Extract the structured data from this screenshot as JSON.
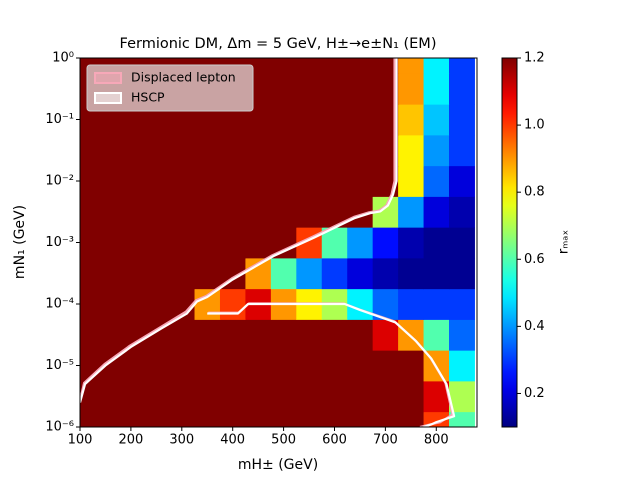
{
  "chart_data": {
    "type": "heatmap",
    "title": "Fermionic DM, Δm = 5 GeV, H±→e±N₁  (EM)",
    "x_label": "mH± (GeV)",
    "y_label": "mN₁ (GeV)",
    "colorbar_label": "rₘₐₓ",
    "colormap": "jet",
    "x": [
      100,
      150,
      200,
      250,
      300,
      350,
      400,
      450,
      500,
      550,
      600,
      650,
      700,
      750,
      800,
      850
    ],
    "y": [
      1e-06,
      3.16e-06,
      1e-05,
      3.16e-05,
      0.0001,
      0.000316,
      0.001,
      0.00316,
      0.01,
      0.0316,
      0.1,
      0.316,
      1
    ],
    "z": [
      [
        1.2,
        1.2,
        1.2,
        1.2,
        1.2,
        1.2,
        1.2,
        1.2,
        1.2,
        1.2,
        1.2,
        1.2,
        1.2,
        1.2,
        1.0,
        0.6
      ],
      [
        1.2,
        1.2,
        1.2,
        1.2,
        1.2,
        1.2,
        1.2,
        1.2,
        1.2,
        1.2,
        1.2,
        1.2,
        1.2,
        1.2,
        1.1,
        0.7
      ],
      [
        1.2,
        1.2,
        1.2,
        1.2,
        1.2,
        1.2,
        1.2,
        1.2,
        1.2,
        1.2,
        1.2,
        1.2,
        1.2,
        1.2,
        0.9,
        0.5
      ],
      [
        1.2,
        1.2,
        1.2,
        1.2,
        1.2,
        1.2,
        1.2,
        1.2,
        1.2,
        1.2,
        1.2,
        1.2,
        1.1,
        0.9,
        0.6,
        0.35
      ],
      [
        1.2,
        1.2,
        1.2,
        1.2,
        1.2,
        0.9,
        1.0,
        1.1,
        0.9,
        0.8,
        0.7,
        0.5,
        0.35,
        0.3,
        0.3,
        0.3
      ],
      [
        1.2,
        1.2,
        1.2,
        1.2,
        1.2,
        1.2,
        1.2,
        0.9,
        0.6,
        0.4,
        0.3,
        0.2,
        0.15,
        0.12,
        0.12,
        0.12
      ],
      [
        1.2,
        1.2,
        1.2,
        1.2,
        1.2,
        1.2,
        1.2,
        1.2,
        1.2,
        1.0,
        0.6,
        0.4,
        0.25,
        0.15,
        0.12,
        0.12
      ],
      [
        1.2,
        1.2,
        1.2,
        1.2,
        1.2,
        1.2,
        1.2,
        1.2,
        1.2,
        1.2,
        1.2,
        1.2,
        0.7,
        0.4,
        0.2,
        0.15
      ],
      [
        1.2,
        1.2,
        1.2,
        1.2,
        1.2,
        1.2,
        1.2,
        1.2,
        1.2,
        1.2,
        1.2,
        1.2,
        1.2,
        0.8,
        0.35,
        0.2
      ],
      [
        1.2,
        1.2,
        1.2,
        1.2,
        1.2,
        1.2,
        1.2,
        1.2,
        1.2,
        1.2,
        1.2,
        1.2,
        1.2,
        0.8,
        0.4,
        0.3
      ],
      [
        1.2,
        1.2,
        1.2,
        1.2,
        1.2,
        1.2,
        1.2,
        1.2,
        1.2,
        1.2,
        1.2,
        1.2,
        1.2,
        0.85,
        0.45,
        0.3
      ],
      [
        1.2,
        1.2,
        1.2,
        1.2,
        1.2,
        1.2,
        1.2,
        1.2,
        1.2,
        1.2,
        1.2,
        1.2,
        1.2,
        0.9,
        0.5,
        0.3
      ],
      [
        1.2,
        1.2,
        1.2,
        1.2,
        1.2,
        1.2,
        1.2,
        1.2,
        1.2,
        1.2,
        1.2,
        1.2,
        1.2,
        0.9,
        0.5,
        0.3
      ]
    ],
    "clim": [
      0.1,
      1.2
    ],
    "cticks": [
      0.2,
      0.4,
      0.6,
      0.8,
      {
        "value": 1,
        "label": "1.0"
      },
      1.2
    ],
    "xlim": [
      100,
      880
    ],
    "xticks": [
      100,
      200,
      300,
      400,
      500,
      600,
      700,
      800
    ],
    "ylim": [
      1e-06,
      1
    ],
    "ylog": true,
    "yticks": [
      {
        "value": 1e-06,
        "label": "10⁻⁶"
      },
      {
        "value": 1e-05,
        "label": "10⁻⁵"
      },
      {
        "value": 0.0001,
        "label": "10⁻⁴"
      },
      {
        "value": 0.001,
        "label": "10⁻³"
      },
      {
        "value": 0.01,
        "label": "10⁻²"
      },
      {
        "value": 0.1,
        "label": "10⁻¹"
      },
      {
        "value": 1,
        "label": "10⁰"
      }
    ],
    "legend": "upper left",
    "contours": [
      {
        "name": "Displaced lepton",
        "color": "#f7a8b8",
        "x": [
          718,
          718,
          712,
          702,
          688,
          668,
          638,
          558,
          478,
          398,
          348,
          328,
          308,
          258,
          198,
          148,
          108,
          100,
          null,
          352,
          412,
          432,
          618,
          648,
          718,
          758,
          788,
          818,
          832,
          808,
          788,
          768
        ],
        "y": [
          1,
          0.01,
          0.006,
          0.004,
          0.0033,
          0.0031,
          0.0026,
          0.00125,
          0.00062,
          0.00026,
          0.000135,
          0.000115,
          7.5e-05,
          4.2e-05,
          2.1e-05,
          1.05e-05,
          5.2e-06,
          2.7e-06,
          null,
          7.2e-05,
          7.2e-05,
          0.000102,
          0.000102,
          8.2e-05,
          5.2e-05,
          2.6e-05,
          1.35e-05,
          5.2e-06,
          1.6e-06,
          1.2e-06,
          1.1e-06,
          1e-06
        ]
      },
      {
        "name": "HSCP",
        "color": "#ffffff",
        "x": [
          722,
          722,
          715,
          705,
          690,
          670,
          640,
          560,
          480,
          400,
          350,
          330,
          310,
          260,
          200,
          150,
          110,
          100,
          null,
          350,
          410,
          430,
          620,
          650,
          720,
          760,
          790,
          820,
          835,
          800,
          790,
          775
        ],
        "y": [
          1,
          0.01,
          0.006,
          0.004,
          0.0032,
          0.003,
          0.0025,
          0.0012,
          0.0006,
          0.00025,
          0.00013,
          0.00011,
          7e-05,
          4e-05,
          2e-05,
          1e-05,
          5e-06,
          2.5e-06,
          null,
          7e-05,
          7e-05,
          0.0001,
          0.0001,
          8e-05,
          5e-05,
          2.5e-05,
          1.3e-05,
          5e-06,
          1.5e-06,
          1.2e-06,
          1.1e-06,
          1e-06
        ]
      }
    ]
  }
}
